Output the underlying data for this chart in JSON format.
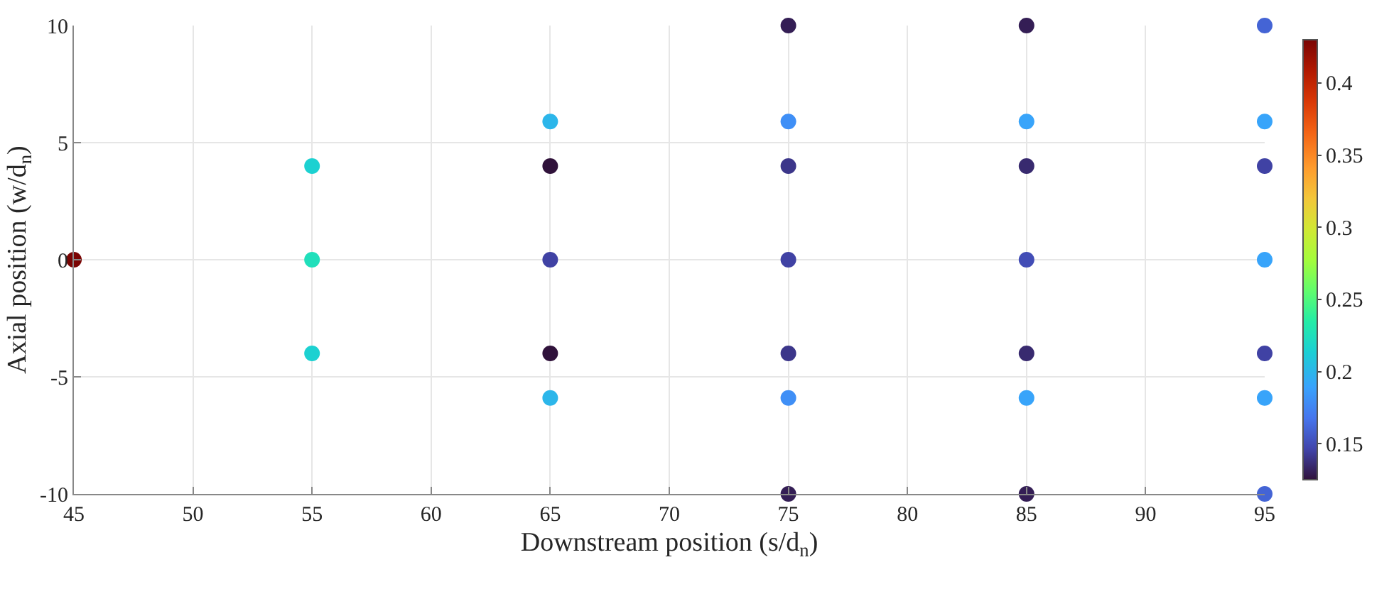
{
  "chart_data": {
    "type": "scatter",
    "xlabel": "Downstream position (s/d$_{n}$)",
    "ylabel": "Axial position (w/d$_{n}$)",
    "x": [
      45,
      55,
      55,
      55,
      65,
      65,
      65,
      65,
      65,
      75,
      75,
      75,
      75,
      75,
      75,
      75,
      85,
      85,
      85,
      85,
      85,
      85,
      85,
      95,
      95,
      95,
      95,
      95,
      95,
      95
    ],
    "values": [
      0,
      4,
      0,
      -4,
      5.9,
      4,
      0,
      -4,
      -5.9,
      10,
      5.9,
      4,
      0,
      -4,
      -5.9,
      -10,
      10,
      5.9,
      4,
      0,
      -4,
      -5.9,
      -10,
      10,
      5.9,
      4,
      0,
      -4,
      -5.9,
      -10
    ],
    "cvalues": [
      0.43,
      0.215,
      0.225,
      0.215,
      0.2,
      0.125,
      0.145,
      0.125,
      0.2,
      0.13,
      0.18,
      0.14,
      0.145,
      0.14,
      0.18,
      0.13,
      0.13,
      0.19,
      0.135,
      0.15,
      0.135,
      0.19,
      0.13,
      0.16,
      0.19,
      0.145,
      0.19,
      0.145,
      0.19,
      0.16
    ],
    "marker": "circle",
    "xlim": [
      45,
      95
    ],
    "xticks": [
      45,
      50,
      55,
      60,
      65,
      70,
      75,
      80,
      85,
      90,
      95
    ],
    "ylim": [
      -10,
      10
    ],
    "yticks": [
      -10,
      -5,
      0,
      5,
      10
    ],
    "clim": [
      0.125,
      0.43
    ],
    "cticks": [
      0.15,
      0.2,
      0.25,
      0.3,
      0.35,
      0.4
    ],
    "grid": true
  }
}
